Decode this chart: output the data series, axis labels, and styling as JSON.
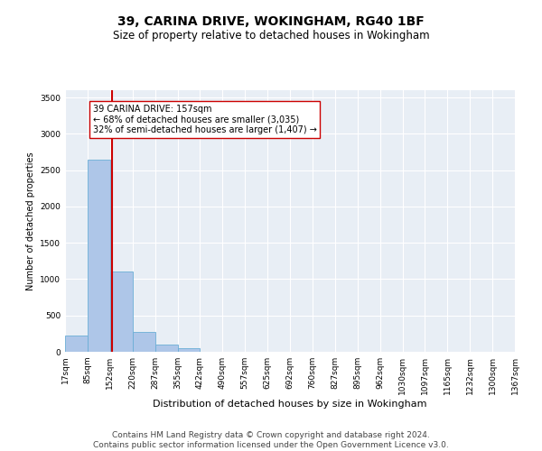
{
  "title": "39, CARINA DRIVE, WOKINGHAM, RG40 1BF",
  "subtitle": "Size of property relative to detached houses in Wokingham",
  "xlabel": "Distribution of detached houses by size in Wokingham",
  "ylabel": "Number of detached properties",
  "bin_edges": [
    17,
    85,
    152,
    220,
    287,
    355,
    422,
    490,
    557,
    625,
    692,
    760,
    827,
    895,
    962,
    1030,
    1097,
    1165,
    1232,
    1300,
    1367
  ],
  "bar_heights": [
    220,
    2650,
    1100,
    270,
    95,
    45,
    0,
    0,
    0,
    0,
    0,
    0,
    0,
    0,
    0,
    0,
    0,
    0,
    0,
    0
  ],
  "bar_color": "#aec6e8",
  "bar_edgecolor": "#6baed6",
  "property_size": 157,
  "vline_color": "#cc0000",
  "annotation_text": "39 CARINA DRIVE: 157sqm\n← 68% of detached houses are smaller (3,035)\n32% of semi-detached houses are larger (1,407) →",
  "annotation_box_color": "#ffffff",
  "annotation_box_edgecolor": "#cc0000",
  "ylim": [
    0,
    3600
  ],
  "yticks": [
    0,
    500,
    1000,
    1500,
    2000,
    2500,
    3000,
    3500
  ],
  "footer_text": "Contains HM Land Registry data © Crown copyright and database right 2024.\nContains public sector information licensed under the Open Government Licence v3.0.",
  "background_color": "#e8eef5",
  "grid_color": "#ffffff",
  "title_fontsize": 10,
  "subtitle_fontsize": 8.5,
  "ylabel_fontsize": 7,
  "xlabel_fontsize": 8,
  "tick_fontsize": 6.5,
  "annotation_fontsize": 7,
  "footer_fontsize": 6.5
}
